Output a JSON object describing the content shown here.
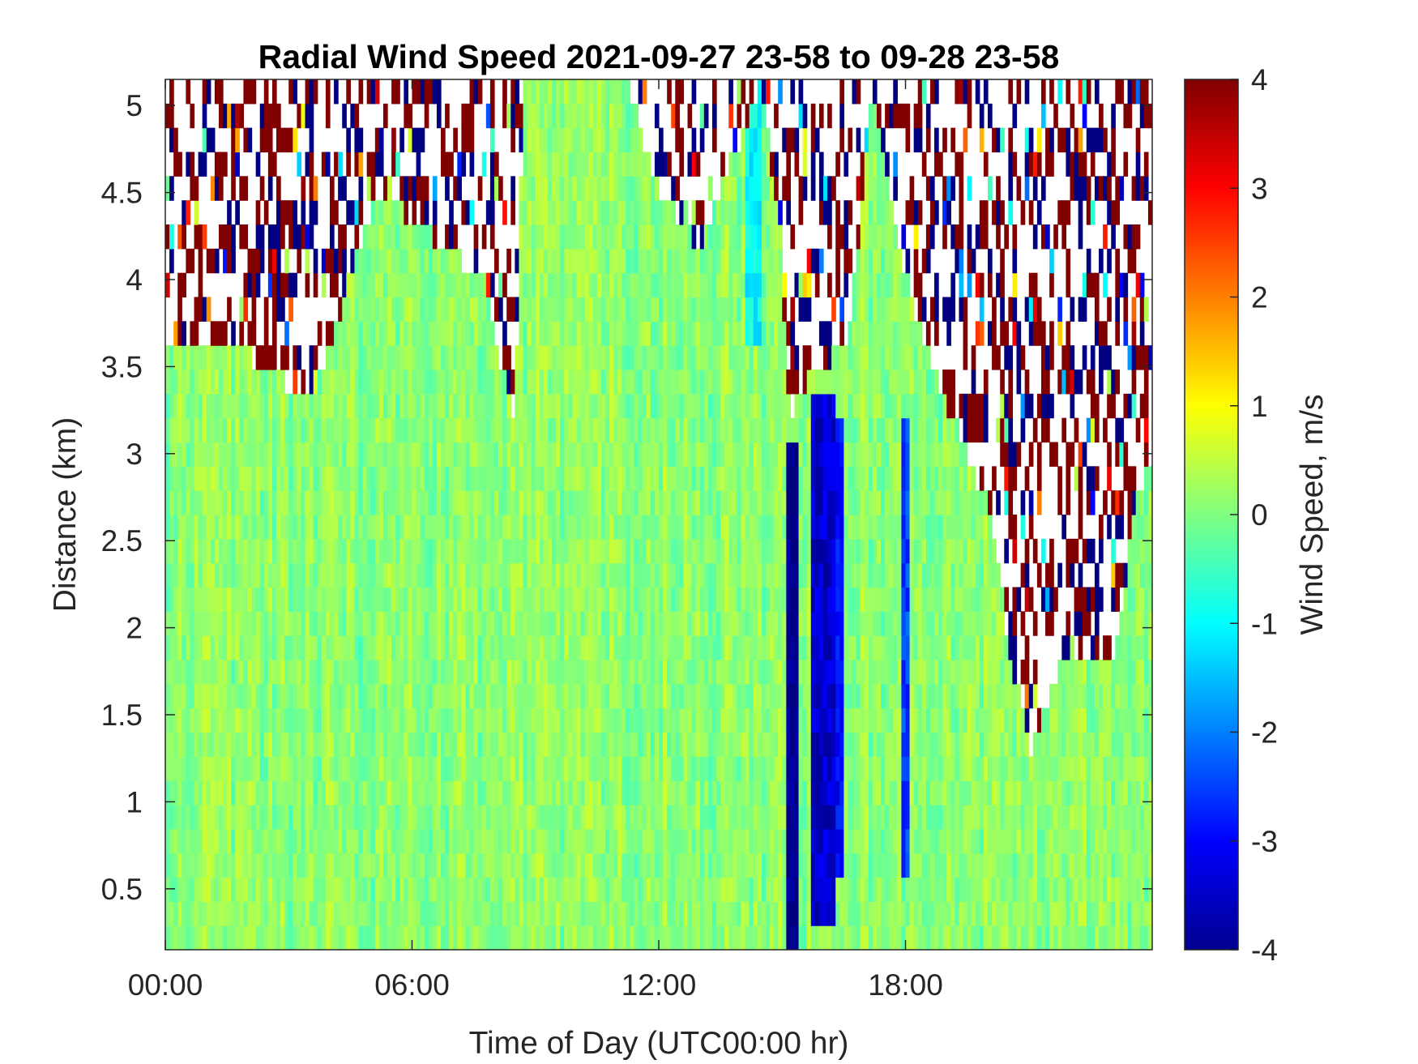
{
  "chart_data": {
    "type": "heatmap",
    "title": "Radial Wind Speed 2021-09-27 23-58 to 09-28 23-58",
    "xlabel": "Time of Day (UTC00:00 hr)",
    "ylabel": "Distance (km)",
    "colorbar_label": "Wind Speed, m/s",
    "colormap": "jet",
    "x_unit": "hours",
    "xlim": [
      0,
      24
    ],
    "ylim": [
      0.15,
      5.15
    ],
    "clim": [
      -4,
      4
    ],
    "x_ticks": [
      {
        "value": 0,
        "label": "00:00"
      },
      {
        "value": 6,
        "label": "06:00"
      },
      {
        "value": 12,
        "label": "12:00"
      },
      {
        "value": 18,
        "label": "18:00"
      }
    ],
    "y_ticks": [
      {
        "value": 0.5,
        "label": "0.5"
      },
      {
        "value": 1,
        "label": "1"
      },
      {
        "value": 1.5,
        "label": "1.5"
      },
      {
        "value": 2,
        "label": "2"
      },
      {
        "value": 2.5,
        "label": "2.5"
      },
      {
        "value": 3,
        "label": "3"
      },
      {
        "value": 3.5,
        "label": "3.5"
      },
      {
        "value": 4,
        "label": "4"
      },
      {
        "value": 4.5,
        "label": "4.5"
      },
      {
        "value": 5,
        "label": "5"
      }
    ],
    "colorbar_ticks": [
      {
        "value": -4,
        "label": "-4"
      },
      {
        "value": -3,
        "label": "-3"
      },
      {
        "value": -2,
        "label": "-2"
      },
      {
        "value": -1,
        "label": "-1"
      },
      {
        "value": 0,
        "label": "0"
      },
      {
        "value": 1,
        "label": "1"
      },
      {
        "value": 2,
        "label": "2"
      },
      {
        "value": 3,
        "label": "3"
      },
      {
        "value": 4,
        "label": "4"
      }
    ],
    "valid_data_top_km": [
      {
        "x": 0,
        "y": 3.65
      },
      {
        "x": 1.2,
        "y": 3.6
      },
      {
        "x": 2.2,
        "y": 3.55
      },
      {
        "x": 3.5,
        "y": 3.3
      },
      {
        "x": 5.2,
        "y": 4.5
      },
      {
        "x": 7.8,
        "y": 4.0
      },
      {
        "x": 8.5,
        "y": 3.1
      },
      {
        "x": 8.7,
        "y": 5.15
      },
      {
        "x": 11.2,
        "y": 5.15
      },
      {
        "x": 12.0,
        "y": 4.5
      },
      {
        "x": 13.0,
        "y": 4.2
      },
      {
        "x": 13.8,
        "y": 4.7
      },
      {
        "x": 14.5,
        "y": 5.15
      },
      {
        "x": 14.9,
        "y": 4.3
      },
      {
        "x": 15.2,
        "y": 3.2
      },
      {
        "x": 15.8,
        "y": 3.5
      },
      {
        "x": 16.6,
        "y": 3.6
      },
      {
        "x": 17.2,
        "y": 5.15
      },
      {
        "x": 17.8,
        "y": 4.2
      },
      {
        "x": 18.4,
        "y": 3.7
      },
      {
        "x": 19.0,
        "y": 3.3
      },
      {
        "x": 20.0,
        "y": 2.7
      },
      {
        "x": 20.6,
        "y": 1.8
      },
      {
        "x": 21.0,
        "y": 1.3
      },
      {
        "x": 22.0,
        "y": 1.9
      },
      {
        "x": 23.0,
        "y": 1.8
      },
      {
        "x": 23.7,
        "y": 2.8
      },
      {
        "x": 24,
        "y": 3.0
      }
    ],
    "strong_negative_features": [
      {
        "x_start": 15.15,
        "x_end": 15.45,
        "y_start": 0.15,
        "y_end": 3.0,
        "value": -4
      },
      {
        "x_start": 15.7,
        "x_end": 16.25,
        "y_start": 0.3,
        "y_end": 3.3,
        "value": -3.4
      },
      {
        "x_start": 16.3,
        "x_end": 16.5,
        "y_start": 0.55,
        "y_end": 3.2,
        "value": -3
      },
      {
        "x_start": 17.9,
        "x_end": 18.05,
        "y_start": 0.5,
        "y_end": 3.2,
        "value": -2.5
      },
      {
        "x_start": 14.15,
        "x_end": 14.5,
        "y_start": 3.6,
        "y_end": 5.15,
        "value": -1
      }
    ],
    "background_values": {
      "typical": 0.1,
      "range": [
        -0.6,
        0.6
      ]
    }
  }
}
